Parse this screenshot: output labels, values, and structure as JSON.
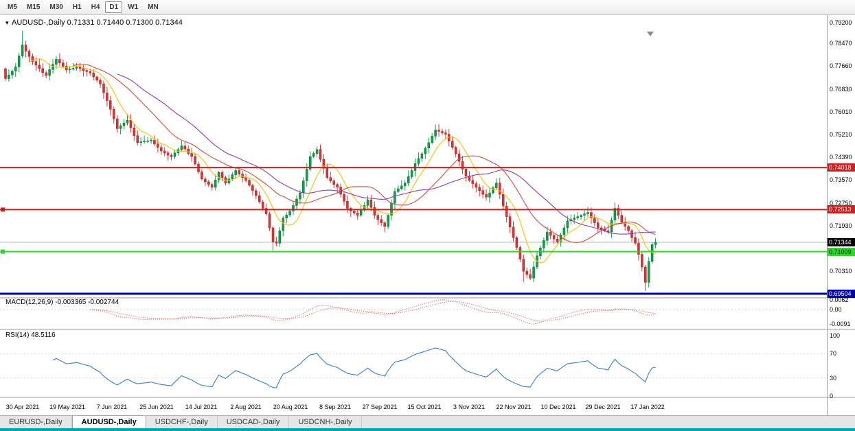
{
  "icons": {
    "collapse_arrow": "▾"
  },
  "toolbar": {
    "timeframes": [
      "M5",
      "M15",
      "M30",
      "H1",
      "H4",
      "D1",
      "W1",
      "MN"
    ],
    "active": "D1"
  },
  "chart": {
    "symbol_label": "AUDUSD-,Daily",
    "ohlc_text": "0.71331 0.71440 0.71300 0.71344",
    "current_price": "0.71344",
    "current_price_value": 0.71344,
    "price_axis": [
      "0.79200",
      "0.78470",
      "0.77660",
      "0.76830",
      "0.76010",
      "0.75210",
      "0.74390",
      "0.73570",
      "0.72750",
      "0.71930",
      "0.70310"
    ],
    "levels": [
      {
        "name": "resistance-1",
        "value": 0.74018,
        "label": "0.74018",
        "color": "#cc1f1f",
        "text_color": "#ffffff",
        "width": 2,
        "handle": false
      },
      {
        "name": "resistance-2",
        "value": 0.72513,
        "label": "0.72513",
        "color": "#cc1f1f",
        "text_color": "#ffffff",
        "width": 2,
        "handle": true
      },
      {
        "name": "support-1",
        "value": 0.71009,
        "label": "0.71009",
        "color": "#2fd42f",
        "text_color": "#003300",
        "width": 2,
        "handle": true
      },
      {
        "name": "support-2",
        "value": 0.69504,
        "label": "0.69504",
        "color": "#0000a8",
        "text_color": "#ffffff",
        "width": 3,
        "handle": false
      }
    ]
  },
  "macd": {
    "label": "MACD(12,26,9) -0.003365 -0.002744",
    "value": -0.003365,
    "signal": -0.002744,
    "axis": [
      "0.0062",
      "0.00",
      "-0.0091"
    ]
  },
  "rsi": {
    "label": "RSI(14) 48.5116",
    "value": 48.5116,
    "axis": [
      "100",
      "70",
      "30",
      "0"
    ]
  },
  "dates": [
    "30 Apr 2021",
    "19 May 2021",
    "7 Jun 2021",
    "25 Jun 2021",
    "14 Jul 2021",
    "2 Aug 2021",
    "20 Aug 2021",
    "8 Sep 2021",
    "27 Sep 2021",
    "15 Oct 2021",
    "3 Nov 2021",
    "22 Nov 2021",
    "10 Dec 2021",
    "29 Dec 2021",
    "17 Jan 2022"
  ],
  "tabs": {
    "items": [
      {
        "label": "EURUSD-,Daily",
        "active": false
      },
      {
        "label": "AUDUSD-,Daily",
        "active": true
      },
      {
        "label": "USDCHF-,Daily",
        "active": false
      },
      {
        "label": "USDCAD-,Daily",
        "active": false
      },
      {
        "label": "USDCNH-,Daily",
        "active": false
      }
    ]
  },
  "window": {
    "bottom_strip_color": "#00a6b0"
  },
  "chart_data": {
    "type": "candlestick",
    "symbol": "AUDUSD",
    "timeframe": "Daily",
    "title": "AUDUSD-,Daily",
    "ohlc_current": {
      "open": 0.71331,
      "high": 0.7144,
      "low": 0.713,
      "close": 0.71344
    },
    "price_axis_range": [
      0.693,
      0.7955
    ],
    "x_axis_dates": [
      "30 Apr 2021",
      "19 May 2021",
      "7 Jun 2021",
      "25 Jun 2021",
      "14 Jul 2021",
      "2 Aug 2021",
      "20 Aug 2021",
      "8 Sep 2021",
      "27 Sep 2021",
      "15 Oct 2021",
      "3 Nov 2021",
      "22 Nov 2021",
      "10 Dec 2021",
      "29 Dec 2021",
      "17 Jan 2022"
    ],
    "horizontal_levels": [
      0.74018,
      0.72513,
      0.71009,
      0.69504
    ],
    "colors": {
      "up": "#0fa04a",
      "up_border": "#06692f",
      "down": "#dd3333",
      "down_border": "#9c1d1d",
      "ma_fast": "#f2c411",
      "ma_mid": "#cf4a3c",
      "ma_slow": "#8e3ba8",
      "macd": "#d43f3f",
      "rsi_line": "#3b7bbf"
    },
    "indicators": {
      "moving_averages": [
        {
          "period": 8
        },
        {
          "period": 21
        },
        {
          "period": 34
        }
      ],
      "macd": {
        "fast": 12,
        "slow": 26,
        "signal": 9,
        "current": -0.003365,
        "current_signal": -0.002744,
        "axis_ticks": [
          0.0062,
          0,
          -0.0091
        ]
      },
      "rsi": {
        "period": 14,
        "current": 48.5116,
        "levels": [
          70,
          30
        ],
        "axis_ticks": [
          100,
          70,
          30,
          0
        ]
      }
    },
    "closes": [
      0.772,
      0.7733,
      0.7747,
      0.7762,
      0.7801,
      0.784,
      0.7818,
      0.7799,
      0.7781,
      0.7768,
      0.7756,
      0.7741,
      0.7731,
      0.7752,
      0.7771,
      0.7789,
      0.7776,
      0.7764,
      0.7751,
      0.7754,
      0.7757,
      0.7761,
      0.7756,
      0.7749,
      0.7745,
      0.774,
      0.7726,
      0.7714,
      0.7701,
      0.7669,
      0.7641,
      0.761,
      0.7576,
      0.7541,
      0.7551,
      0.7561,
      0.7571,
      0.7544,
      0.7516,
      0.7491,
      0.7494,
      0.7496,
      0.7497,
      0.75,
      0.7486,
      0.7474,
      0.7461,
      0.7454,
      0.7446,
      0.7441,
      0.7454,
      0.7466,
      0.7479,
      0.7468,
      0.7452,
      0.7441,
      0.7414,
      0.7386,
      0.7361,
      0.7351,
      0.7341,
      0.7331,
      0.7357,
      0.7384,
      0.7366,
      0.7346,
      0.7361,
      0.7376,
      0.7391,
      0.7379,
      0.7366,
      0.7356,
      0.7338,
      0.7319,
      0.7301,
      0.7279,
      0.7256,
      0.7236,
      0.7186,
      0.7136,
      0.7131,
      0.7176,
      0.7221,
      0.7232,
      0.7246,
      0.7266,
      0.7289,
      0.7311,
      0.7354,
      0.7396,
      0.7441,
      0.7452,
      0.7466,
      0.7431,
      0.7399,
      0.7366,
      0.7354,
      0.7341,
      0.7331,
      0.7306,
      0.7281,
      0.7256,
      0.7246,
      0.7239,
      0.7231,
      0.7249,
      0.7266,
      0.7286,
      0.7259,
      0.7231,
      0.7216,
      0.7204,
      0.7191,
      0.7231,
      0.7274,
      0.7316,
      0.7326,
      0.7336,
      0.7346,
      0.7369,
      0.7391,
      0.7416,
      0.7434,
      0.7451,
      0.7471,
      0.7491,
      0.7514,
      0.7536,
      0.7531,
      0.7526,
      0.7521,
      0.7496,
      0.7474,
      0.7451,
      0.7424,
      0.7396,
      0.7371,
      0.7356,
      0.7344,
      0.7331,
      0.7319,
      0.7306,
      0.7296,
      0.7311,
      0.7329,
      0.7346,
      0.7306,
      0.7264,
      0.7226,
      0.7189,
      0.7151,
      0.7116,
      0.7074,
      0.7031,
      0.7019,
      0.7006,
      0.7046,
      0.7086,
      0.7114,
      0.7141,
      0.7171,
      0.7159,
      0.7146,
      0.7136,
      0.7161,
      0.7186,
      0.7211,
      0.7216,
      0.7221,
      0.7226,
      0.7231,
      0.7236,
      0.7241,
      0.7221,
      0.7204,
      0.7186,
      0.7181,
      0.7176,
      0.7171,
      0.7214,
      0.7256,
      0.7231,
      0.7206,
      0.7191,
      0.7176,
      0.7151,
      0.7131,
      0.7091,
      0.7046,
      0.6991,
      0.7066,
      0.7126,
      0.71344
    ],
    "spikes": {
      "5": [
        0.7891,
        null
      ],
      "31": [
        null,
        0.7588
      ],
      "79": [
        null,
        0.7106
      ],
      "92": [
        0.7478,
        null
      ],
      "112": [
        null,
        0.717
      ],
      "127": [
        0.7556,
        null
      ],
      "153": [
        null,
        0.6993
      ],
      "180": [
        0.7277,
        null
      ],
      "189": [
        null,
        0.696
      ]
    }
  }
}
